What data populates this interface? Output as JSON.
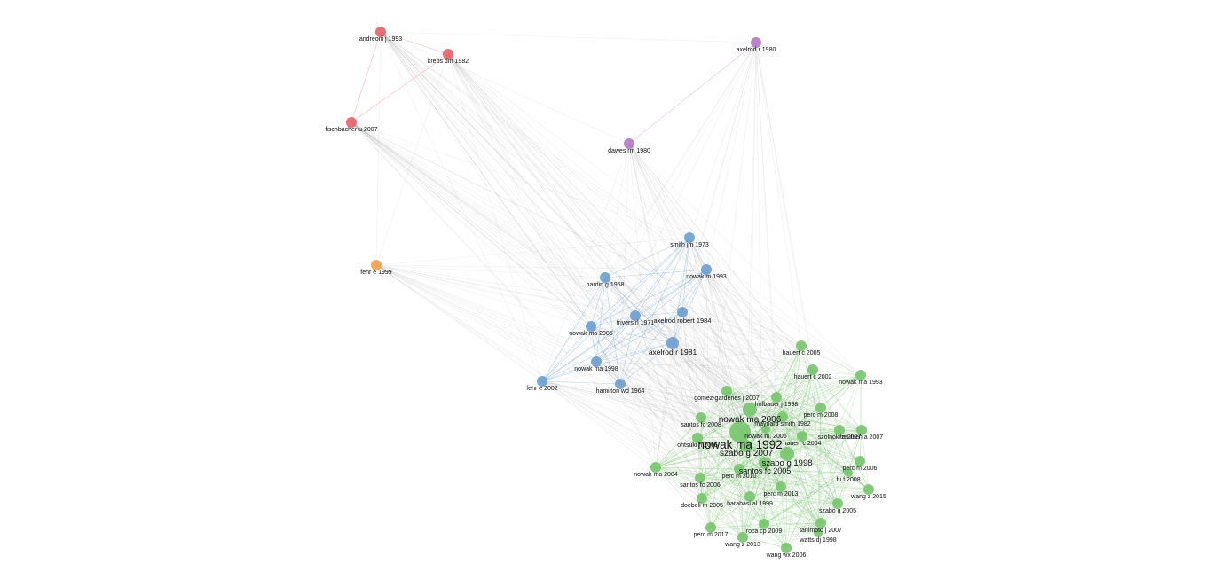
{
  "graph": {
    "type": "co-citation network",
    "clusters": {
      "red": {
        "color": "#e8636b"
      },
      "purple": {
        "color": "#b47cc4"
      },
      "orange": {
        "color": "#f5a14c"
      },
      "blue": {
        "color": "#6f9fd0"
      },
      "green": {
        "color": "#78c76f"
      }
    },
    "nodes": [
      {
        "id": "andreoni",
        "label": "andreoni j 1993",
        "cluster": "red"
      },
      {
        "id": "kreps",
        "label": "kreps dm 1982",
        "cluster": "red"
      },
      {
        "id": "fischbacher",
        "label": "fischbacher u 2007",
        "cluster": "red"
      },
      {
        "id": "axelrod1980",
        "label": "axelrod r 1980",
        "cluster": "purple"
      },
      {
        "id": "dawes",
        "label": "dawes rm 1980",
        "cluster": "purple"
      },
      {
        "id": "fehr1999",
        "label": "fehr e 1999",
        "cluster": "orange"
      },
      {
        "id": "smith1973",
        "label": "smith jm 1973",
        "cluster": "blue"
      },
      {
        "id": "nowakm1993",
        "label": "nowak m 1993",
        "cluster": "blue"
      },
      {
        "id": "hardin",
        "label": "hardin g 1968",
        "cluster": "blue"
      },
      {
        "id": "trivers",
        "label": "trivers rl 1971",
        "cluster": "blue"
      },
      {
        "id": "axelrod1984",
        "label": "axelrod robert 1984",
        "cluster": "blue"
      },
      {
        "id": "nowakma2005",
        "label": "nowak ma 2005",
        "cluster": "blue"
      },
      {
        "id": "axelrod1981",
        "label": "axelrod r 1981",
        "cluster": "blue"
      },
      {
        "id": "nowakma1998",
        "label": "nowak ma 1998",
        "cluster": "blue"
      },
      {
        "id": "fehr2002",
        "label": "fehr e 2002",
        "cluster": "blue"
      },
      {
        "id": "hamilton",
        "label": "hamilton wd 1964",
        "cluster": "blue"
      },
      {
        "id": "hauert2005",
        "label": "hauert c 2005",
        "cluster": "green"
      },
      {
        "id": "hauert2002",
        "label": "hauert c 2002",
        "cluster": "green"
      },
      {
        "id": "nowakma1993",
        "label": "nowak ma 1993",
        "cluster": "green"
      },
      {
        "id": "gomez",
        "label": "gomez-gardenes j 2007",
        "cluster": "green"
      },
      {
        "id": "hofbauer",
        "label": "hofbauer j 1998",
        "cluster": "green"
      },
      {
        "id": "nowakma2006",
        "label": "nowak ma 2006",
        "cluster": "green"
      },
      {
        "id": "percm2008",
        "label": "perc m 2008",
        "cluster": "green"
      },
      {
        "id": "santos2008",
        "label": "santos fc 2008",
        "cluster": "green"
      },
      {
        "id": "maynard",
        "label": "maynard smith 1982",
        "cluster": "green"
      },
      {
        "id": "nowakm2006",
        "label": "nowak m. 2006",
        "cluster": "green"
      },
      {
        "id": "szolnoki",
        "label": "szolnoki a 2007",
        "cluster": "green"
      },
      {
        "id": "traulsen",
        "label": "traulsen a 2007",
        "cluster": "green"
      },
      {
        "id": "ohtsuki",
        "label": "ohtsuki h 2006",
        "cluster": "green"
      },
      {
        "id": "nowakma1992",
        "label": "nowak ma 1992",
        "cluster": "green"
      },
      {
        "id": "hauert2004",
        "label": "hauert c 2004",
        "cluster": "green"
      },
      {
        "id": "szabo2007",
        "label": "szabo g 2007",
        "cluster": "green"
      },
      {
        "id": "szabo1998",
        "label": "szabo g 1998",
        "cluster": "green"
      },
      {
        "id": "percm2006",
        "label": "perc m 2006",
        "cluster": "green"
      },
      {
        "id": "nowakma2004",
        "label": "nowak ma 2004",
        "cluster": "green"
      },
      {
        "id": "santos2005",
        "label": "santos fc 2005",
        "cluster": "green"
      },
      {
        "id": "percm2010",
        "label": "perc m 2010",
        "cluster": "green"
      },
      {
        "id": "fuf2008",
        "label": "fu f 2008",
        "cluster": "green"
      },
      {
        "id": "santos2006",
        "label": "santos fc 2006",
        "cluster": "green"
      },
      {
        "id": "wangz2015",
        "label": "wang z 2015",
        "cluster": "green"
      },
      {
        "id": "percm2013",
        "label": "perc m 2013",
        "cluster": "green"
      },
      {
        "id": "doebeli",
        "label": "doebeli m 2005",
        "cluster": "green"
      },
      {
        "id": "barabasi",
        "label": "barabasi al 1999",
        "cluster": "green"
      },
      {
        "id": "szabo2005",
        "label": "szabo g 2005",
        "cluster": "green"
      },
      {
        "id": "tanimoto",
        "label": "tanimoto j 2007",
        "cluster": "green"
      },
      {
        "id": "roca",
        "label": "roca cp 2009",
        "cluster": "green"
      },
      {
        "id": "percm2017",
        "label": "perc m 2017",
        "cluster": "green"
      },
      {
        "id": "watts",
        "label": "watts dj 1998",
        "cluster": "green"
      },
      {
        "id": "wangz2013",
        "label": "wang z 2013",
        "cluster": "green"
      },
      {
        "id": "wangwx2006",
        "label": "wang wx 2006",
        "cluster": "green"
      }
    ]
  }
}
